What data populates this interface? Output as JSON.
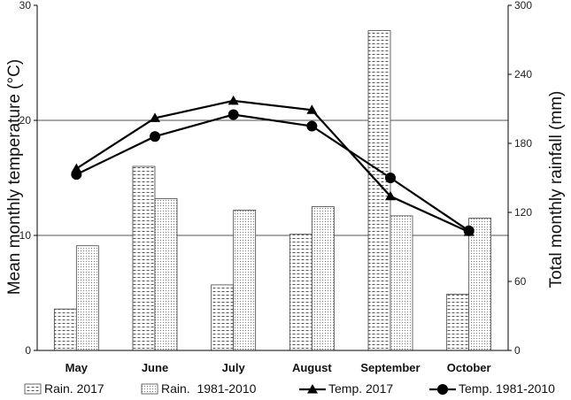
{
  "chart_data": {
    "type": "bar+line",
    "categories": [
      "May",
      "June",
      "July",
      "August",
      "September",
      "October"
    ],
    "y_left": {
      "label": "Mean monthly temperature (°C)",
      "range": [
        0,
        30
      ],
      "ticks": [
        0,
        10,
        20,
        30
      ]
    },
    "y_right": {
      "label": "Total monthly rainfall (mm)",
      "range": [
        0,
        300
      ],
      "ticks": [
        0,
        60,
        120,
        180,
        240,
        300
      ]
    },
    "grid": "horizontal at left-axis ticks",
    "legend_position": "bottom",
    "series": [
      {
        "name": "Rain. 2017",
        "kind": "bar",
        "axis": "right",
        "pattern": "dashes",
        "values": [
          36,
          160,
          57,
          101,
          278,
          49
        ]
      },
      {
        "name": "Rain.  1981-2010",
        "kind": "bar",
        "axis": "right",
        "pattern": "dots",
        "values": [
          91,
          132,
          122,
          125,
          117,
          115
        ]
      },
      {
        "name": "Temp. 2017",
        "kind": "line",
        "axis": "left",
        "marker": "triangle",
        "values": [
          15.8,
          20.2,
          21.7,
          20.9,
          13.4,
          10.3
        ]
      },
      {
        "name": "Temp. 1981-2010",
        "kind": "line",
        "axis": "left",
        "marker": "circle",
        "values": [
          15.3,
          18.6,
          20.5,
          19.5,
          15.0,
          10.4
        ]
      }
    ]
  }
}
